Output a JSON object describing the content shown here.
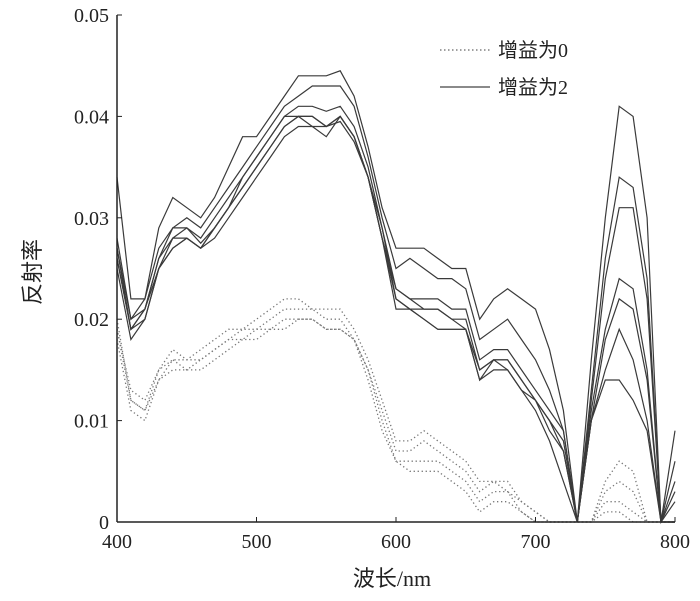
{
  "chart_data": {
    "type": "line",
    "title": "",
    "xlabel": "波长/nm",
    "ylabel": "反射率",
    "xlim": [
      400,
      800
    ],
    "ylim": [
      0,
      0.05
    ],
    "xticks": [
      "400",
      "500",
      "600",
      "700",
      "800"
    ],
    "yticks": [
      "0",
      "0.01",
      "0.02",
      "0.03",
      "0.04",
      "0.05"
    ],
    "grid": false,
    "legend_position": "top-right",
    "legend": [
      {
        "label": "增益为0",
        "style": "dotted"
      },
      {
        "label": "增益为2",
        "style": "solid"
      }
    ],
    "x": [
      400,
      410,
      420,
      430,
      440,
      450,
      460,
      470,
      480,
      490,
      500,
      510,
      520,
      530,
      540,
      550,
      560,
      570,
      580,
      590,
      600,
      610,
      620,
      630,
      640,
      650,
      660,
      670,
      680,
      690,
      700,
      710,
      720,
      730,
      740,
      750,
      760,
      770,
      780,
      790,
      800
    ],
    "series": [
      {
        "name": "增益为2",
        "style": "solid",
        "values": [
          0.034,
          0.022,
          0.022,
          0.029,
          0.032,
          0.031,
          0.03,
          0.032,
          0.035,
          0.038,
          0.038,
          0.04,
          0.042,
          0.044,
          0.044,
          0.044,
          0.0445,
          0.042,
          0.037,
          0.031,
          0.027,
          0.027,
          0.027,
          0.026,
          0.025,
          0.025,
          0.02,
          0.022,
          0.023,
          0.022,
          0.021,
          0.017,
          0.011,
          0,
          0.016,
          0.03,
          0.041,
          0.04,
          0.03,
          0,
          0.009
        ]
      },
      {
        "name": "增益为2",
        "style": "solid",
        "values": [
          0.028,
          0.02,
          0.022,
          0.027,
          0.029,
          0.03,
          0.029,
          0.031,
          0.033,
          0.035,
          0.037,
          0.039,
          0.041,
          0.042,
          0.043,
          0.043,
          0.043,
          0.041,
          0.036,
          0.03,
          0.025,
          0.026,
          0.025,
          0.024,
          0.024,
          0.023,
          0.018,
          0.019,
          0.02,
          0.018,
          0.016,
          0.013,
          0.009,
          0,
          0.013,
          0.026,
          0.034,
          0.033,
          0.024,
          0,
          0.006
        ]
      },
      {
        "name": "增益为2",
        "style": "solid",
        "values": [
          0.027,
          0.019,
          0.021,
          0.026,
          0.028,
          0.029,
          0.0275,
          0.029,
          0.031,
          0.034,
          0.036,
          0.038,
          0.04,
          0.041,
          0.041,
          0.0405,
          0.041,
          0.039,
          0.035,
          0.029,
          0.023,
          0.022,
          0.022,
          0.022,
          0.021,
          0.021,
          0.016,
          0.017,
          0.017,
          0.015,
          0.013,
          0.011,
          0.009,
          0,
          0.012,
          0.024,
          0.031,
          0.031,
          0.022,
          0,
          0.004
        ]
      },
      {
        "name": "增益为2",
        "style": "solid",
        "values": [
          0.026,
          0.019,
          0.02,
          0.025,
          0.028,
          0.028,
          0.027,
          0.029,
          0.031,
          0.033,
          0.035,
          0.037,
          0.039,
          0.04,
          0.04,
          0.039,
          0.04,
          0.038,
          0.034,
          0.029,
          0.022,
          0.021,
          0.021,
          0.021,
          0.02,
          0.02,
          0.015,
          0.016,
          0.016,
          0.014,
          0.012,
          0.01,
          0.008,
          0,
          0.011,
          0.019,
          0.024,
          0.023,
          0.015,
          0,
          0.003
        ]
      },
      {
        "name": "增益为2",
        "style": "solid",
        "values": [
          0.025,
          0.018,
          0.02,
          0.025,
          0.027,
          0.028,
          0.027,
          0.028,
          0.03,
          0.032,
          0.034,
          0.036,
          0.038,
          0.039,
          0.039,
          0.039,
          0.0395,
          0.0375,
          0.034,
          0.028,
          0.021,
          0.021,
          0.02,
          0.019,
          0.019,
          0.019,
          0.014,
          0.016,
          0.016,
          0.014,
          0.012,
          0.01,
          0.007,
          0,
          0.01,
          0.018,
          0.022,
          0.021,
          0.014,
          0,
          0.002
        ]
      },
      {
        "name": "增益为2",
        "style": "solid",
        "values": [
          0.027,
          0.02,
          0.021,
          0.026,
          0.029,
          0.029,
          0.028,
          0.03,
          0.032,
          0.034,
          0.036,
          0.038,
          0.04,
          0.04,
          0.039,
          0.038,
          0.04,
          0.038,
          0.034,
          0.028,
          0.022,
          0.021,
          0.02,
          0.019,
          0.019,
          0.019,
          0.014,
          0.015,
          0.015,
          0.013,
          0.012,
          0.009,
          0.007,
          0,
          0.01,
          0.015,
          0.019,
          0.016,
          0.01,
          0,
          0
        ]
      },
      {
        "name": "增益为2",
        "style": "solid",
        "values": [
          0.026,
          0.019,
          0.021,
          0.025,
          0.027,
          0.028,
          0.027,
          0.029,
          0.031,
          0.033,
          0.035,
          0.037,
          0.039,
          0.04,
          0.04,
          0.039,
          0.04,
          0.038,
          0.034,
          0.028,
          0.023,
          0.022,
          0.021,
          0.021,
          0.02,
          0.019,
          0.015,
          0.016,
          0.015,
          0.013,
          0.011,
          0.008,
          0.004,
          0,
          0.01,
          0.014,
          0.014,
          0.012,
          0.009,
          0,
          0
        ]
      },
      {
        "name": "增益为0",
        "style": "dotted",
        "values": [
          0.02,
          0.012,
          0.011,
          0.015,
          0.017,
          0.016,
          0.017,
          0.018,
          0.019,
          0.019,
          0.02,
          0.021,
          0.022,
          0.022,
          0.021,
          0.021,
          0.021,
          0.019,
          0.016,
          0.012,
          0.008,
          0.008,
          0.009,
          0.008,
          0.007,
          0.006,
          0.004,
          0.004,
          0.004,
          0.002,
          0.001,
          0,
          0,
          0,
          0,
          0.004,
          0.006,
          0.005,
          0,
          0,
          0
        ]
      },
      {
        "name": "增益为0",
        "style": "dotted",
        "values": [
          0.019,
          0.013,
          0.012,
          0.015,
          0.016,
          0.016,
          0.016,
          0.017,
          0.018,
          0.019,
          0.019,
          0.02,
          0.021,
          0.021,
          0.021,
          0.02,
          0.02,
          0.018,
          0.015,
          0.011,
          0.007,
          0.007,
          0.008,
          0.007,
          0.006,
          0.005,
          0.003,
          0.004,
          0.003,
          0.002,
          0.001,
          0,
          0,
          0,
          0,
          0.003,
          0.004,
          0.003,
          0,
          0,
          0
        ]
      },
      {
        "name": "增益为0",
        "style": "dotted",
        "values": [
          0.019,
          0.012,
          0.011,
          0.014,
          0.016,
          0.015,
          0.016,
          0.017,
          0.018,
          0.018,
          0.019,
          0.019,
          0.02,
          0.02,
          0.02,
          0.019,
          0.019,
          0.018,
          0.015,
          0.01,
          0.006,
          0.006,
          0.006,
          0.006,
          0.005,
          0.004,
          0.002,
          0.003,
          0.003,
          0.001,
          0,
          0,
          0,
          0,
          0,
          0.002,
          0.002,
          0.001,
          0,
          0,
          0
        ]
      },
      {
        "name": "增益为0",
        "style": "dotted",
        "values": [
          0.018,
          0.011,
          0.01,
          0.014,
          0.015,
          0.015,
          0.015,
          0.016,
          0.017,
          0.018,
          0.018,
          0.019,
          0.019,
          0.02,
          0.02,
          0.019,
          0.019,
          0.018,
          0.014,
          0.009,
          0.006,
          0.005,
          0.005,
          0.005,
          0.004,
          0.003,
          0.001,
          0.002,
          0.002,
          0.001,
          0,
          0,
          0,
          0,
          0,
          0.001,
          0.001,
          0,
          0,
          0,
          0
        ]
      }
    ]
  }
}
